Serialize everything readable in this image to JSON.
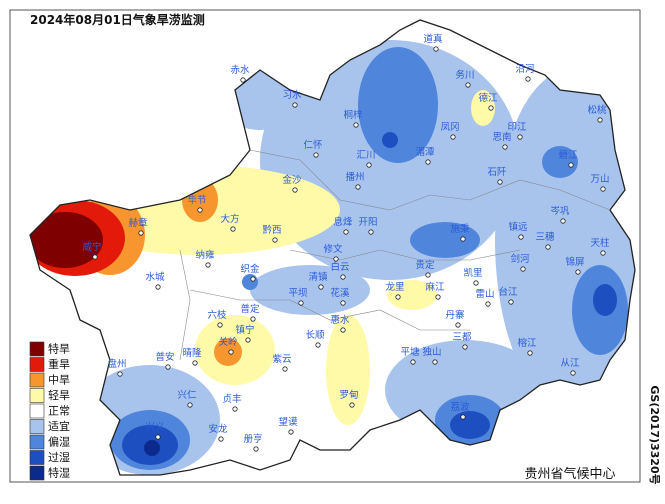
{
  "title": "2024年08月01日气象旱涝监测",
  "legend": [
    "特旱",
    "重旱",
    "中旱",
    "轻旱",
    "正常",
    "适宜",
    "偏湿",
    "过湿",
    "特湿"
  ],
  "counties": [
    "道真",
    "赤水",
    "习水",
    "务川",
    "沿河",
    "桐梓",
    "德江",
    "松桃",
    "印江",
    "凤冈",
    "思南",
    "湄潭",
    "汇川",
    "仁怀",
    "碧江",
    "石阡",
    "播州",
    "金沙",
    "万山",
    "毕节",
    "大方",
    "赫章",
    "威宁",
    "黔西",
    "息烽",
    "开阳",
    "施秉",
    "镇远",
    "岑巩",
    "三穗",
    "天柱",
    "修文",
    "纳雍",
    "织金",
    "白云",
    "清镇",
    "贵定",
    "凯里",
    "剑河",
    "台江",
    "锦屏",
    "雷山",
    "花溪",
    "龙里",
    "平坝",
    "水城",
    "六枝",
    "普定",
    "麻江",
    "丹寨",
    "长顺",
    "惠水",
    "镇宁",
    "关岭",
    "盘州",
    "普安",
    "晴隆",
    "紫云",
    "平塘",
    "独山",
    "三都",
    "榕江",
    "从江",
    "兴仁",
    "贞丰",
    "罗甸",
    "荔波",
    "兴义",
    "安龙",
    "望谟",
    "册亨"
  ],
  "credit": "贵州省气候中心",
  "map_number": "GS(2017)3320号"
}
